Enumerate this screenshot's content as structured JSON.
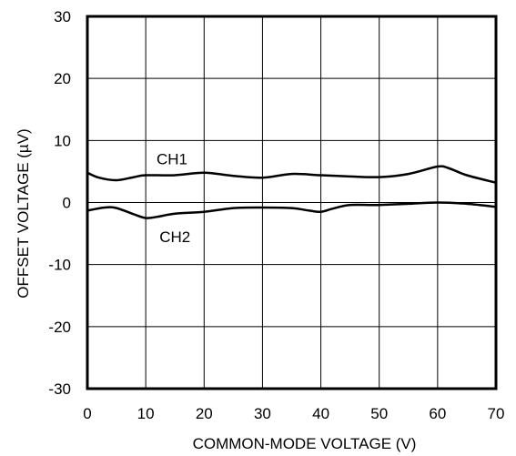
{
  "chart_data": {
    "type": "line",
    "title": "",
    "xlabel": "COMMON-MODE VOLTAGE (V)",
    "ylabel": "OFFSET VOLTAGE (µV)",
    "xlim": [
      0,
      70
    ],
    "ylim": [
      -30,
      30
    ],
    "x_ticks": [
      0,
      10,
      20,
      30,
      40,
      50,
      60,
      70
    ],
    "y_ticks": [
      -30,
      -20,
      -10,
      0,
      10,
      20,
      30
    ],
    "x_tick_labels": [
      "0",
      "10",
      "20",
      "30",
      "40",
      "50",
      "60",
      "70"
    ],
    "y_tick_labels": [
      "-30",
      "-20",
      "-10",
      "0",
      "10",
      "20",
      "30"
    ],
    "grid": true,
    "legend": "none",
    "series": [
      {
        "name": "CH1",
        "color": "#000000",
        "x": [
          0,
          2,
          5,
          8,
          10,
          15,
          20,
          25,
          30,
          35,
          40,
          45,
          50,
          55,
          60,
          62,
          65,
          70
        ],
        "values": [
          4.8,
          4.0,
          3.6,
          4.1,
          4.4,
          4.4,
          4.8,
          4.3,
          4.0,
          4.6,
          4.4,
          4.2,
          4.1,
          4.6,
          5.8,
          5.5,
          4.4,
          3.2
        ]
      },
      {
        "name": "CH2",
        "color": "#000000",
        "x": [
          0,
          3,
          5,
          8,
          10,
          12,
          15,
          20,
          25,
          30,
          35,
          38,
          40,
          42,
          45,
          50,
          55,
          60,
          65,
          70
        ],
        "values": [
          -1.3,
          -0.8,
          -0.9,
          -1.9,
          -2.5,
          -2.3,
          -1.8,
          -1.5,
          -0.9,
          -0.8,
          -0.9,
          -1.3,
          -1.5,
          -1.0,
          -0.4,
          -0.4,
          -0.2,
          0.0,
          -0.2,
          -0.7
        ]
      }
    ]
  }
}
